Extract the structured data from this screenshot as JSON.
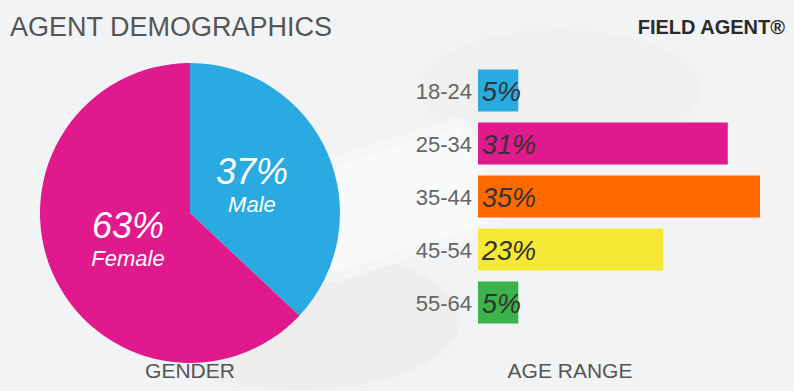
{
  "header": {
    "title": "AGENT DEMOGRAPHICS",
    "logo": "FIELD AGENT®"
  },
  "chart_data": [
    {
      "type": "pie",
      "title": "GENDER",
      "categories": [
        "Male",
        "Female"
      ],
      "values": [
        37,
        63
      ],
      "value_labels": [
        "37%",
        "63%"
      ],
      "colors": [
        "#29abe2",
        "#e0198c"
      ],
      "data_labels": true
    },
    {
      "type": "bar",
      "title": "AGE RANGE",
      "orientation": "horizontal",
      "categories": [
        "18-24",
        "25-34",
        "35-44",
        "45-54",
        "55-64"
      ],
      "values": [
        5,
        31,
        35,
        23,
        5
      ],
      "value_labels": [
        "5%",
        "31%",
        "35%",
        "23%",
        "5%"
      ],
      "colors": [
        "#29abe2",
        "#e0198c",
        "#ff6a00",
        "#f5e836",
        "#3cb34a"
      ],
      "xlim": [
        0,
        35
      ],
      "data_labels": true,
      "tick_labels": "y"
    }
  ]
}
